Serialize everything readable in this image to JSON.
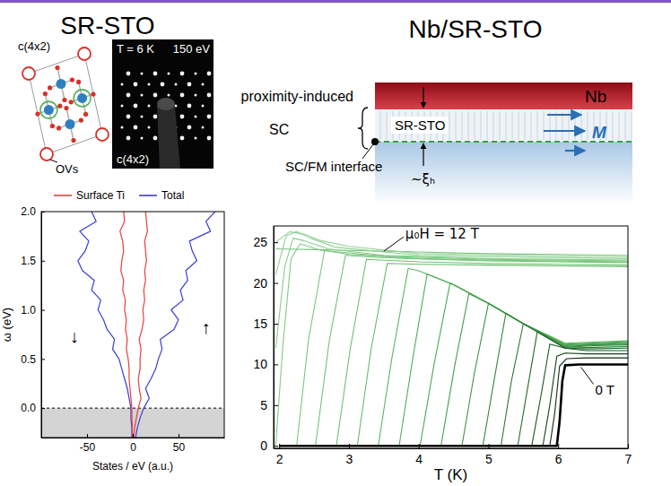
{
  "titles": [
    "SR-STO",
    "Nb/SR-STO"
  ],
  "diagrams": {
    "cell": {
      "label": "c(4x2)",
      "vacancy_label": "OVs"
    },
    "leed": {
      "temperature": "T = 6 K",
      "energy": "150 eV",
      "label": "c(4x2)"
    },
    "schematic": {
      "top_layer": "Nb",
      "layer": "SR-STO",
      "side_label": [
        "proximity-induced",
        "SC"
      ],
      "interface": "SC/FM interface",
      "depth": "~ξₕ",
      "magnetization": "M"
    }
  },
  "chart_data": [
    {
      "type": "line",
      "x_label": "States / eV (a.u.)",
      "y_label": "ω (eV)",
      "xlim": [
        -100,
        100
      ],
      "ylim": [
        -0.3,
        2.0
      ],
      "xticks": [
        -50,
        0,
        50
      ],
      "yticks": [
        {
          "value": 0,
          "label": "0.0"
        },
        {
          "value": 0.5,
          "label": "0.5"
        },
        {
          "value": 1,
          "label": "1.0"
        },
        {
          "value": 1.5,
          "label": "1.5"
        },
        {
          "value": 2,
          "label": "2.0"
        }
      ],
      "legend": "top",
      "annotations": [
        "↓",
        "↑"
      ],
      "series": [
        {
          "name": "Surface Ti",
          "color": "#e8403a",
          "x": [
            -0.5,
            -0.5,
            -1,
            -1,
            -2,
            -3,
            -4,
            -4,
            -5,
            -7,
            -6,
            -8,
            -7,
            -9,
            -8,
            -11,
            -10,
            -13,
            -12,
            -10,
            -11,
            -14,
            -9,
            -10,
            null,
            1,
            2,
            4,
            6,
            9,
            7,
            6,
            8,
            8,
            9,
            7,
            10,
            12,
            11,
            13,
            12,
            14,
            13,
            15,
            14,
            13,
            16,
            15,
            14
          ],
          "values": [
            -0.3,
            -0.2,
            -0.1,
            0,
            0.1,
            0.2,
            0.3,
            0.4,
            0.5,
            0.6,
            0.7,
            0.8,
            0.9,
            1.0,
            1.1,
            1.2,
            1.3,
            1.4,
            1.5,
            1.6,
            1.7,
            1.8,
            1.9,
            2.0,
            null,
            -0.3,
            -0.2,
            -0.1,
            0,
            0.1,
            0.2,
            0.3,
            0.4,
            0.5,
            0.6,
            0.7,
            0.8,
            0.9,
            1.0,
            1.1,
            1.2,
            1.3,
            1.4,
            1.5,
            1.6,
            1.7,
            1.8,
            1.9,
            2.0
          ]
        },
        {
          "name": "Total",
          "color": "#3b3bd6",
          "x": [
            -1,
            -1,
            -2,
            -2,
            -4,
            -6,
            -9,
            -12,
            -15,
            -22,
            -20,
            -28,
            -32,
            -38,
            -35,
            -45,
            -42,
            -55,
            -60,
            -52,
            -48,
            -58,
            -40,
            -45,
            null,
            3,
            5,
            8,
            12,
            18,
            14,
            20,
            25,
            28,
            32,
            30,
            45,
            50,
            42,
            55,
            52,
            60,
            58,
            70,
            65,
            62,
            85,
            80,
            90
          ],
          "values": [
            -0.3,
            -0.2,
            -0.1,
            0,
            0.1,
            0.2,
            0.3,
            0.4,
            0.5,
            0.6,
            0.7,
            0.8,
            0.9,
            1.0,
            1.1,
            1.2,
            1.3,
            1.4,
            1.5,
            1.6,
            1.7,
            1.8,
            1.9,
            2.0,
            null,
            -0.3,
            -0.2,
            -0.1,
            0,
            0.1,
            0.2,
            0.3,
            0.4,
            0.5,
            0.6,
            0.7,
            0.8,
            0.9,
            1.0,
            1.1,
            1.2,
            1.3,
            1.4,
            1.5,
            1.6,
            1.7,
            1.8,
            1.9,
            2.0
          ]
        }
      ]
    },
    {
      "type": "line",
      "x_label": "T (K)",
      "xlim": [
        1.92,
        7
      ],
      "ylim": [
        -0.3,
        27
      ],
      "xticks": [
        2,
        3,
        4,
        5,
        6,
        7
      ],
      "yticks": [
        0,
        5,
        10,
        15,
        20,
        25
      ],
      "annotations": [
        "μ₀H = 12 T",
        "0 T"
      ],
      "series": [
        {
          "color": "#000000",
          "x": [
            2,
            5.98,
            6.02,
            6.06,
            6.1,
            6.3,
            7
          ],
          "values": [
            0,
            0,
            3,
            8,
            9.9,
            10,
            10
          ]
        },
        {
          "color": "#0f2a10",
          "x": [
            2,
            5.88,
            5.95,
            6.02,
            6.12,
            6.4,
            7
          ],
          "values": [
            0,
            0,
            4,
            9.8,
            10.7,
            10.8,
            10.8
          ]
        },
        {
          "color": "#14401a",
          "x": [
            2,
            5.78,
            5.88,
            5.98,
            6.1,
            6.4,
            7
          ],
          "values": [
            0,
            0,
            5,
            11,
            11.4,
            11.3,
            11.3
          ]
        },
        {
          "color": "#1a5522",
          "x": [
            2,
            5.62,
            5.75,
            5.88,
            6.1,
            6.4,
            7
          ],
          "values": [
            0,
            0,
            6,
            12.5,
            12,
            11.7,
            11.7
          ]
        },
        {
          "color": "#226a2a",
          "x": [
            2,
            5.42,
            5.56,
            5.7,
            6.1,
            6.4,
            7
          ],
          "values": [
            0,
            0,
            7,
            14,
            12,
            11.9,
            12
          ]
        },
        {
          "color": "#2b7a33",
          "x": [
            2,
            5.18,
            5.33,
            5.5,
            6.1,
            6.5,
            7
          ],
          "values": [
            0,
            0,
            8,
            15,
            12,
            12.1,
            12.2
          ]
        },
        {
          "color": "#33883b",
          "x": [
            2,
            4.92,
            5.08,
            5.25,
            5.5,
            6.1,
            6.5,
            7
          ],
          "values": [
            0,
            0,
            8,
            16.3,
            15,
            12.1,
            12.3,
            12.4
          ]
        },
        {
          "color": "#3b9443",
          "x": [
            2,
            4.62,
            4.8,
            5,
            5.5,
            6.1,
            6.5,
            7
          ],
          "values": [
            0,
            0,
            9,
            17.5,
            15,
            12.2,
            12.4,
            12.5
          ]
        },
        {
          "color": "#439e4b",
          "x": [
            2,
            4.32,
            4.52,
            4.72,
            5,
            5.5,
            6.1,
            7
          ],
          "values": [
            0,
            0,
            10,
            18.7,
            17.5,
            15,
            12.3,
            12.6
          ]
        },
        {
          "color": "#4aa753",
          "x": [
            2,
            4.02,
            4.22,
            4.45,
            5,
            5.5,
            6.1,
            7
          ],
          "values": [
            0,
            0,
            10,
            20,
            17.5,
            15,
            12.4,
            12.7
          ]
        },
        {
          "color": "#52ae5a",
          "x": [
            2,
            3.72,
            3.92,
            4.12,
            4.5,
            5,
            5.5,
            6.1,
            7
          ],
          "values": [
            0,
            0,
            11,
            21.1,
            19.8,
            17.5,
            15,
            12.5,
            12.8
          ]
        },
        {
          "color": "#5ab562",
          "x": [
            2,
            3.42,
            3.62,
            3.85,
            4,
            4.5,
            5,
            5.5,
            6.1,
            7
          ],
          "values": [
            0,
            0,
            11,
            21.8,
            21.5,
            19.8,
            17.5,
            15,
            12.6,
            12.9
          ]
        },
        {
          "color": "#62bb69",
          "x": [
            2,
            3.12,
            3.32,
            3.55,
            4,
            5,
            6,
            7
          ],
          "values": [
            0,
            0,
            12,
            22.4,
            22.3,
            22.2,
            22.1,
            22
          ]
        },
        {
          "color": "#6ac070",
          "x": [
            2,
            2.82,
            3.02,
            3.25,
            4,
            5,
            6,
            7
          ],
          "values": [
            0,
            0,
            12,
            22.9,
            22.6,
            22.4,
            22.3,
            22.2
          ]
        },
        {
          "color": "#72c477",
          "x": [
            2,
            2.52,
            2.72,
            2.95,
            3.5,
            5,
            7
          ],
          "values": [
            0,
            0,
            13,
            23.4,
            23.1,
            22.7,
            22.5
          ]
        },
        {
          "color": "#7ac87e",
          "x": [
            2,
            2.25,
            2.42,
            2.65,
            3,
            4,
            5,
            7
          ],
          "values": [
            0,
            0,
            13,
            24,
            23.5,
            23,
            22.8,
            22.6
          ]
        },
        {
          "color": "#82cb85",
          "x": [
            1.95,
            2.05,
            2.17,
            2.3,
            2.6,
            3.5,
            5,
            7
          ],
          "values": [
            0,
            12,
            23,
            24.8,
            24,
            23.3,
            22.9,
            22.7
          ]
        },
        {
          "color": "#89ce8c",
          "x": [
            1.95,
            2.08,
            2.2,
            2.35,
            2.7,
            3.5,
            5,
            7
          ],
          "values": [
            12,
            22,
            25.5,
            25.2,
            24.2,
            23.4,
            23,
            22.8
          ]
        },
        {
          "color": "#8fd092",
          "x": [
            1.95,
            2.1,
            2.25,
            2.45,
            2.8,
            4,
            7
          ],
          "values": [
            21,
            25.8,
            26.3,
            25.5,
            24.4,
            23.4,
            23
          ]
        },
        {
          "color": "#95d298",
          "x": [
            1.95,
            2.15,
            2.35,
            2.6,
            3,
            4,
            7
          ],
          "values": [
            25,
            26.3,
            26,
            25.2,
            24.5,
            23.6,
            23.2
          ]
        },
        {
          "color": "#7cc47f",
          "x": [
            1.95,
            2.5,
            3,
            3.5,
            4,
            5,
            6,
            7
          ],
          "values": [
            24.2,
            24.1,
            24,
            23.9,
            23.8,
            23.6,
            23.5,
            23.4
          ]
        }
      ]
    }
  ]
}
